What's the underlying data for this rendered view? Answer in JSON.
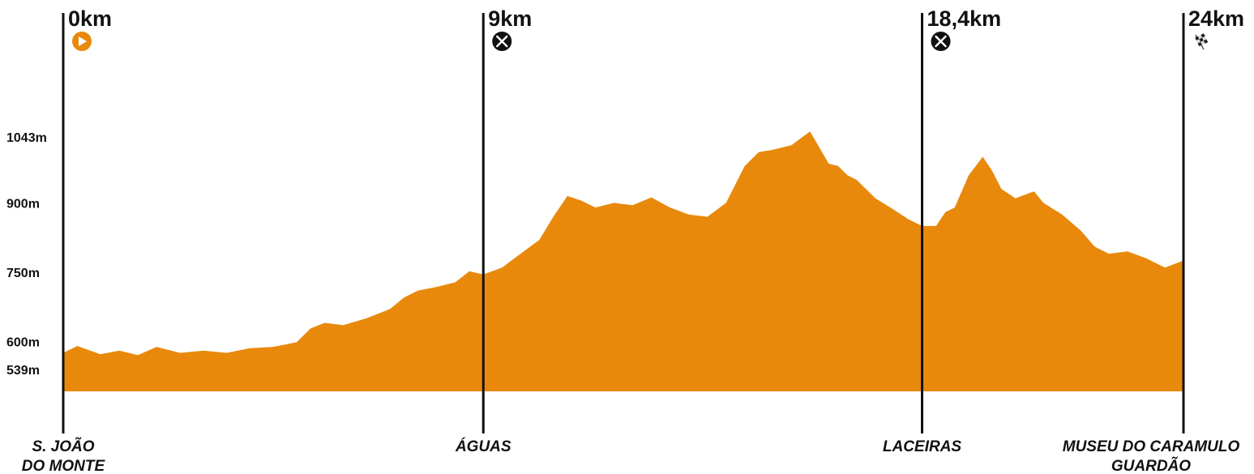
{
  "colors": {
    "fill": "#E8890C",
    "line": "#111111",
    "start_icon": "#E8890C",
    "aid_icon": "#111111"
  },
  "chart_data": {
    "type": "area",
    "title": "",
    "xlabel": "",
    "ylabel": "",
    "units": {
      "x": "km",
      "y": "m"
    },
    "xlim": [
      0,
      24
    ],
    "ylim": [
      490,
      1120
    ],
    "y_ticks": [
      {
        "value": 539,
        "label": "539m"
      },
      {
        "value": 600,
        "label": "600m"
      },
      {
        "value": 750,
        "label": "750m"
      },
      {
        "value": 900,
        "label": "900m"
      },
      {
        "value": 1043,
        "label": "1043m"
      }
    ],
    "markers": [
      {
        "km": 0,
        "label": "0km",
        "icon": "start-icon",
        "place": [
          "S. JOÃO",
          "DO MONTE"
        ]
      },
      {
        "km": 9,
        "label": "9km",
        "icon": "food-aid-icon",
        "place": [
          "ÁGUAS"
        ]
      },
      {
        "km": 18.4,
        "label": "18,4km",
        "icon": "food-aid-icon",
        "place": [
          "LACEIRAS"
        ]
      },
      {
        "km": 24,
        "label": "24km",
        "icon": "finish-flag-icon",
        "place": [
          "MUSEU DO CARAMULO",
          "GUARDÃO"
        ]
      }
    ],
    "series": [
      {
        "x": [
          0,
          0.3,
          0.8,
          1.2,
          1.6,
          2.0,
          2.5,
          3.0,
          3.5,
          4.0,
          4.5,
          5.0,
          5.3,
          5.6,
          6.0,
          6.5,
          7.0,
          7.3,
          7.6,
          8.0,
          8.4,
          8.7,
          9.0,
          9.4,
          9.8,
          10.2,
          10.5,
          10.8,
          11.1,
          11.4,
          11.8,
          12.2,
          12.6,
          13.0,
          13.4,
          13.8,
          14.2,
          14.6,
          14.9,
          15.2,
          15.6,
          16.0,
          16.4,
          16.6,
          16.8,
          17.0,
          17.4,
          17.8,
          18.1,
          18.4,
          18.7,
          18.9,
          19.1,
          19.4,
          19.7,
          19.9,
          20.1,
          20.4,
          20.8,
          21.0,
          21.4,
          21.8,
          22.1,
          22.4,
          22.8,
          23.2,
          23.6,
          24.0
        ],
        "y": [
          575,
          590,
          572,
          580,
          570,
          588,
          575,
          580,
          575,
          585,
          588,
          598,
          628,
          640,
          635,
          650,
          670,
          695,
          710,
          718,
          728,
          752,
          745,
          760,
          790,
          820,
          870,
          915,
          905,
          890,
          900,
          895,
          912,
          890,
          875,
          870,
          900,
          980,
          1010,
          1015,
          1025,
          1055,
          985,
          980,
          960,
          950,
          910,
          885,
          865,
          850,
          850,
          880,
          890,
          960,
          1000,
          970,
          930,
          910,
          925,
          900,
          875,
          840,
          805,
          790,
          795,
          780,
          760,
          775
        ]
      }
    ]
  }
}
